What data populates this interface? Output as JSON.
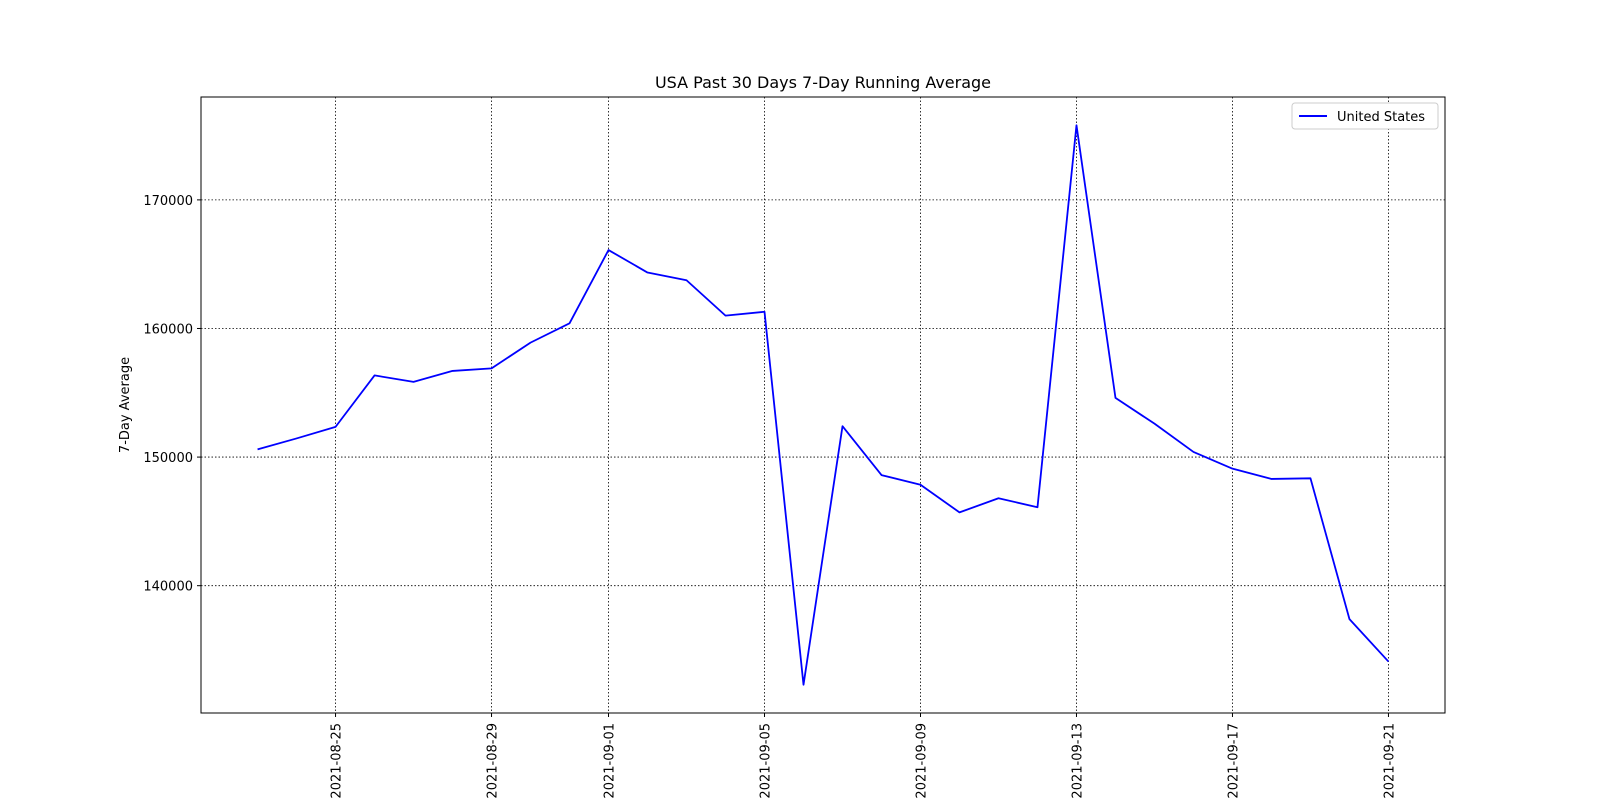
{
  "chart_data": {
    "type": "line",
    "title": "USA Past 30 Days 7-Day Running Average",
    "xlabel": "",
    "ylabel": "7-Day Average",
    "x": [
      "2021-08-23",
      "2021-08-24",
      "2021-08-25",
      "2021-08-26",
      "2021-08-27",
      "2021-08-28",
      "2021-08-29",
      "2021-08-30",
      "2021-08-31",
      "2021-09-01",
      "2021-09-02",
      "2021-09-03",
      "2021-09-04",
      "2021-09-05",
      "2021-09-06",
      "2021-09-07",
      "2021-09-08",
      "2021-09-09",
      "2021-09-10",
      "2021-09-11",
      "2021-09-12",
      "2021-09-13",
      "2021-09-14",
      "2021-09-15",
      "2021-09-16",
      "2021-09-17",
      "2021-09-18",
      "2021-09-19",
      "2021-09-20",
      "2021-09-21"
    ],
    "series": [
      {
        "name": "United States",
        "color": "#0000ff",
        "values": [
          150600,
          151450,
          152350,
          156350,
          155850,
          156700,
          156900,
          158900,
          160400,
          166100,
          164350,
          163750,
          161000,
          161300,
          132300,
          152400,
          148600,
          147850,
          145700,
          146800,
          146100,
          175800,
          154600,
          152600,
          150400,
          149100,
          148300,
          148350,
          137400,
          134100
        ]
      }
    ],
    "xticks": [
      "2021-08-25",
      "2021-08-29",
      "2021-09-01",
      "2021-09-05",
      "2021-09-09",
      "2021-09-13",
      "2021-09-17",
      "2021-09-21"
    ],
    "yticks": [
      140000,
      150000,
      160000,
      170000
    ],
    "xlim": [
      "2021-08-21.55",
      "2021-09-22.45"
    ],
    "ylim": [
      130100,
      178000
    ],
    "grid": true,
    "legend_position": "top-right"
  }
}
